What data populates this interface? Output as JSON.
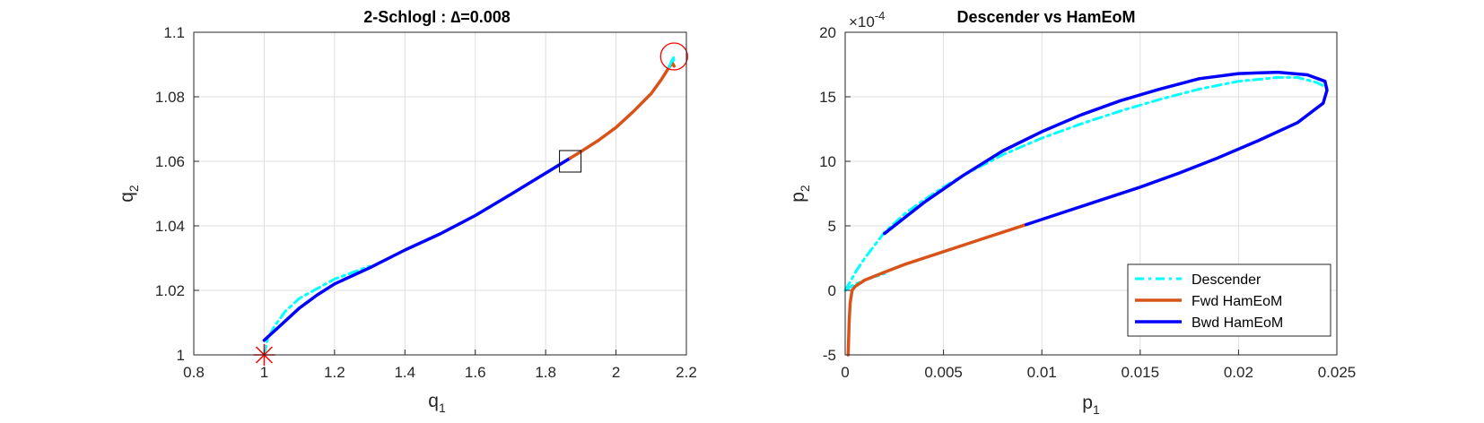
{
  "colors": {
    "descender": "#00FFFF",
    "fwd": "#D95319",
    "bwd": "#0000FF",
    "marker": "#FF0000"
  },
  "chart_data": [
    {
      "type": "line",
      "title": "2-Schlogl : ∆=0.008",
      "xlabel": "q",
      "xlabel_sub": "1",
      "ylabel": "q",
      "ylabel_sub": "2",
      "xlim": [
        0.8,
        2.2
      ],
      "ylim": [
        1.0,
        1.1
      ],
      "xticks": [
        "0.8",
        "1",
        "1.2",
        "1.4",
        "1.6",
        "1.8",
        "2",
        "2.2"
      ],
      "yticks": [
        "1",
        "1.02",
        "1.04",
        "1.06",
        "1.08",
        "1.1"
      ],
      "grid": true,
      "series": [
        {
          "style": "descender",
          "x": [
            1.0,
            1.01,
            1.03,
            1.06,
            1.1,
            1.15,
            1.2,
            1.3
          ],
          "y": [
            1.0,
            1.005,
            1.009,
            1.0135,
            1.0175,
            1.0205,
            1.0235,
            1.0275
          ]
        },
        {
          "style": "bwd",
          "x": [
            1.0,
            1.01,
            1.03,
            1.06,
            1.1,
            1.15,
            1.2,
            1.25,
            1.3,
            1.4,
            1.5,
            1.6,
            1.7,
            1.8,
            1.87
          ],
          "y": [
            1.0045,
            1.0055,
            1.0075,
            1.0105,
            1.0145,
            1.0185,
            1.022,
            1.0245,
            1.027,
            1.0325,
            1.0375,
            1.0432,
            1.0497,
            1.0563,
            1.061
          ]
        },
        {
          "style": "fwd",
          "x": [
            1.87,
            1.9,
            1.95,
            2.0,
            2.05,
            2.1,
            2.13,
            2.15,
            2.16,
            2.165
          ],
          "y": [
            1.061,
            1.063,
            1.0665,
            1.0705,
            1.0755,
            1.081,
            1.0855,
            1.089,
            1.0905,
            1.0895
          ]
        },
        {
          "style": "descender",
          "x": [
            2.15,
            2.16,
            2.163,
            2.165
          ],
          "y": [
            1.089,
            1.0915,
            1.0925,
            1.0905
          ]
        }
      ],
      "markers": [
        {
          "kind": "asterisk",
          "x": 1.0,
          "y": 1.0
        },
        {
          "kind": "square",
          "x": 1.87,
          "y": 1.06
        },
        {
          "kind": "circle",
          "x": 2.165,
          "y": 1.0925
        }
      ]
    },
    {
      "type": "line",
      "title": "Descender vs HamEoM",
      "xlabel": "p",
      "xlabel_sub": "1",
      "ylabel": "p",
      "ylabel_sub": "2",
      "xlim": [
        0,
        0.025
      ],
      "ylim": [
        -5,
        20
      ],
      "yscale_label": "×10",
      "yscale_exp": "-4",
      "xticks": [
        "0",
        "0.005",
        "0.01",
        "0.015",
        "0.02",
        "0.025"
      ],
      "yticks": [
        "-5",
        "0",
        "5",
        "10",
        "15",
        "20"
      ],
      "grid": true,
      "legend": {
        "position": "bottom-right",
        "entries": [
          "Descender",
          "Fwd HamEoM",
          "Bwd HamEoM"
        ]
      },
      "series": [
        {
          "style": "descender",
          "x": [
            0,
            0.0003,
            0.0006,
            0.001,
            0.0015,
            0.002,
            0.003,
            0.004,
            0.005,
            0.006,
            0.008,
            0.01,
            0.012,
            0.014,
            0.016,
            0.018,
            0.02,
            0.022,
            0.023,
            0.0235,
            0.024,
            0.0245
          ],
          "y": [
            0,
            0.8,
            1.6,
            2.5,
            3.5,
            4.5,
            5.9,
            7.0,
            8.0,
            8.9,
            10.5,
            11.8,
            12.9,
            13.9,
            14.8,
            15.6,
            16.2,
            16.5,
            16.5,
            16.3,
            16.1,
            15.7
          ]
        },
        {
          "style": "descender",
          "x": [
            0,
            0.0004,
            0.001,
            0.002
          ],
          "y": [
            0,
            0.4,
            0.8,
            1.3
          ]
        },
        {
          "style": "fwd",
          "x": [
            0.00015,
            0.0002,
            0.00025,
            0.00035,
            0.0005,
            0.001,
            0.002,
            0.003,
            0.004,
            0.005,
            0.006,
            0.007,
            0.008,
            0.0092
          ],
          "y": [
            -5,
            -2.5,
            -1,
            0,
            0.3,
            0.8,
            1.4,
            2.0,
            2.5,
            3.0,
            3.5,
            4.0,
            4.5,
            5.1
          ]
        },
        {
          "style": "bwd",
          "x": [
            0.0092,
            0.011,
            0.013,
            0.015,
            0.017,
            0.019,
            0.021,
            0.023,
            0.0243,
            0.0245,
            0.0244,
            0.0235,
            0.022,
            0.02,
            0.018,
            0.016,
            0.014,
            0.012,
            0.01,
            0.008,
            0.006,
            0.004,
            0.002
          ],
          "y": [
            5.1,
            6.0,
            7.0,
            8.0,
            9.1,
            10.3,
            11.6,
            13.0,
            14.5,
            15.5,
            16.2,
            16.7,
            16.9,
            16.8,
            16.4,
            15.6,
            14.7,
            13.6,
            12.3,
            10.8,
            8.9,
            6.8,
            4.4
          ]
        }
      ]
    }
  ]
}
